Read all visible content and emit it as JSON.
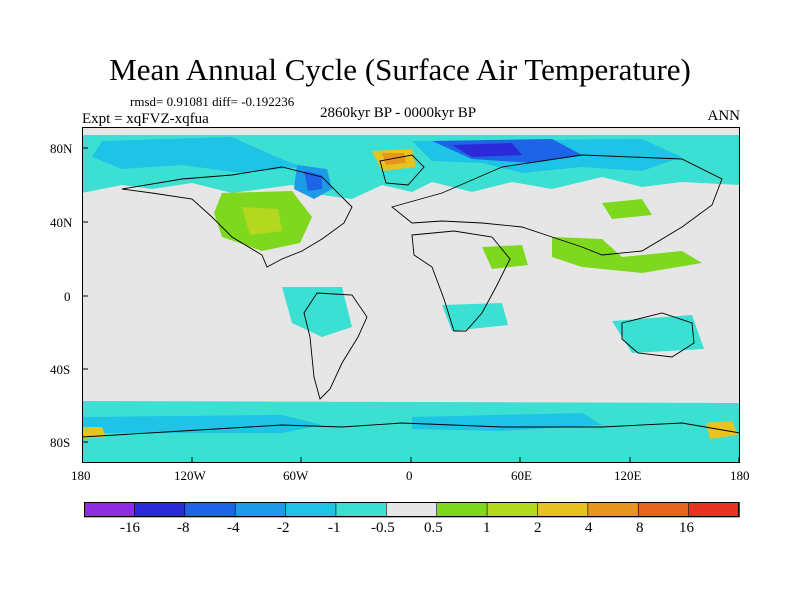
{
  "title": "Mean Annual Cycle (Surface Air Temperature)",
  "stats": "rmsd= 0.91081 diff= -0.192236",
  "experiment": "Expt = xqFVZ-xqfua",
  "period": "2860kyr BP - 0000kyr BP",
  "season": "ANN",
  "lat_ticks": [
    "80N",
    "40N",
    "0",
    "40S",
    "80S"
  ],
  "lon_ticks": [
    "180",
    "120W",
    "60W",
    "0",
    "60E",
    "120E",
    "180"
  ],
  "colorbar": {
    "labels": [
      "-16",
      "-8",
      "-4",
      "-2",
      "-1",
      "-0.5",
      "0.5",
      "1",
      "2",
      "4",
      "8",
      "16"
    ],
    "colors": [
      "#8c2ee0",
      "#2a2ad8",
      "#1e64e6",
      "#1e9be8",
      "#1ec3e6",
      "#3ce0d2",
      "#e6e6e6",
      "#7ed81e",
      "#b4d81e",
      "#e6c31e",
      "#e6961e",
      "#e6641e",
      "#e6321e"
    ]
  }
}
